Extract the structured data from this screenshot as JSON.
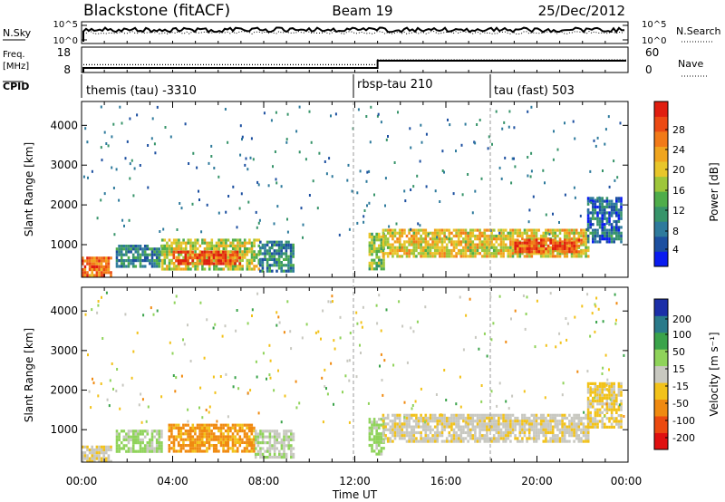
{
  "header": {
    "station": "Blackstone (fitACF)",
    "beam": "Beam 19",
    "date": "25/Dec/2012"
  },
  "noise_panel": {
    "left_label": "N.Sky",
    "left_ticks": [
      "10^5",
      "10^0"
    ],
    "right_label": "N.Search",
    "right_ticks": [
      "10^5",
      "10^0"
    ]
  },
  "freq_panel": {
    "left_label": "Freq.",
    "left_unit": "[MHz]",
    "left_ticks": [
      "18",
      "8"
    ],
    "right_label": "Nave",
    "right_ticks": [
      "60",
      "0"
    ],
    "cpid_label": "CPID"
  },
  "cpid_segments": [
    {
      "label": "themis (tau) -3310",
      "start_hour": 0
    },
    {
      "label": "rbsp-tau 210",
      "start_hour": 12.0
    },
    {
      "label": "tau (fast) 503",
      "start_hour": 18.0
    }
  ],
  "power_panel": {
    "ylabel": "Slant Range [km]",
    "yticks": [
      "1000",
      "2000",
      "3000",
      "4000"
    ],
    "colorbar_label": "Power [dB]",
    "colorbar_ticks": [
      "4",
      "8",
      "12",
      "16",
      "20",
      "24",
      "28"
    ]
  },
  "velocity_panel": {
    "ylabel": "Slant Range [km]",
    "yticks": [
      "1000",
      "2000",
      "3000",
      "4000"
    ],
    "colorbar_label": "Velocity [m s⁻¹]",
    "colorbar_ticks": [
      "200",
      "100",
      "50",
      "15",
      "-15",
      "-50",
      "-100",
      "-200"
    ]
  },
  "xaxis": {
    "label": "Time UT",
    "ticks": [
      "00:00",
      "04:00",
      "08:00",
      "12:00",
      "16:00",
      "20:00",
      "00:00"
    ]
  },
  "chart_data": {
    "type": "heatmap",
    "title": "Blackstone (fitACF) Beam 19 25/Dec/2012",
    "xlabel": "Time UT",
    "ylabel": "Slant Range [km]",
    "xlim_hours": [
      0,
      24
    ],
    "ylim_km": [
      180,
      4600
    ],
    "power_colorscale_db": [
      0,
      30
    ],
    "velocity_colorscale": [
      -250,
      250
    ],
    "frequency_mhz": {
      "before_13h": 10.5,
      "after_13h": 14.5
    },
    "nave": {
      "before_13h": 22,
      "after_13h": 40
    },
    "power_regions": [
      {
        "t_start": 0.0,
        "t_end": 1.3,
        "range_min": 200,
        "range_max": 700,
        "power_db": 24
      },
      {
        "t_start": 1.5,
        "t_end": 3.5,
        "range_min": 450,
        "range_max": 1000,
        "power_db": 8
      },
      {
        "t_start": 3.5,
        "t_end": 7.8,
        "range_min": 420,
        "range_max": 1150,
        "power_db": 16
      },
      {
        "t_start": 4.0,
        "t_end": 7.0,
        "range_min": 500,
        "range_max": 850,
        "power_db": 26
      },
      {
        "t_start": 7.8,
        "t_end": 9.3,
        "range_min": 300,
        "range_max": 1100,
        "power_db": 8
      },
      {
        "t_start": 12.6,
        "t_end": 13.3,
        "range_min": 400,
        "range_max": 1300,
        "power_db": 14
      },
      {
        "t_start": 13.2,
        "t_end": 22.3,
        "range_min": 720,
        "range_max": 1400,
        "power_db": 18
      },
      {
        "t_start": 19.0,
        "t_end": 22.0,
        "range_min": 800,
        "range_max": 1150,
        "power_db": 26
      },
      {
        "t_start": 22.2,
        "t_end": 23.7,
        "range_min": 1100,
        "range_max": 2200,
        "power_db": 6
      }
    ],
    "velocity_regions": [
      {
        "t_start": 0.0,
        "t_end": 1.3,
        "range_min": 200,
        "range_max": 600,
        "velocity": -10
      },
      {
        "t_start": 1.5,
        "t_end": 3.5,
        "range_min": 450,
        "range_max": 1000,
        "velocity": 25
      },
      {
        "t_start": 3.8,
        "t_end": 7.6,
        "range_min": 450,
        "range_max": 1150,
        "velocity": -60
      },
      {
        "t_start": 7.6,
        "t_end": 9.3,
        "range_min": 300,
        "range_max": 1000,
        "velocity": 10
      },
      {
        "t_start": 12.6,
        "t_end": 13.3,
        "range_min": 400,
        "range_max": 1300,
        "velocity": 30
      },
      {
        "t_start": 13.2,
        "t_end": 22.3,
        "range_min": 720,
        "range_max": 1400,
        "velocity": -5
      },
      {
        "t_start": 22.2,
        "t_end": 23.7,
        "range_min": 1100,
        "range_max": 2200,
        "velocity": -20
      }
    ]
  }
}
